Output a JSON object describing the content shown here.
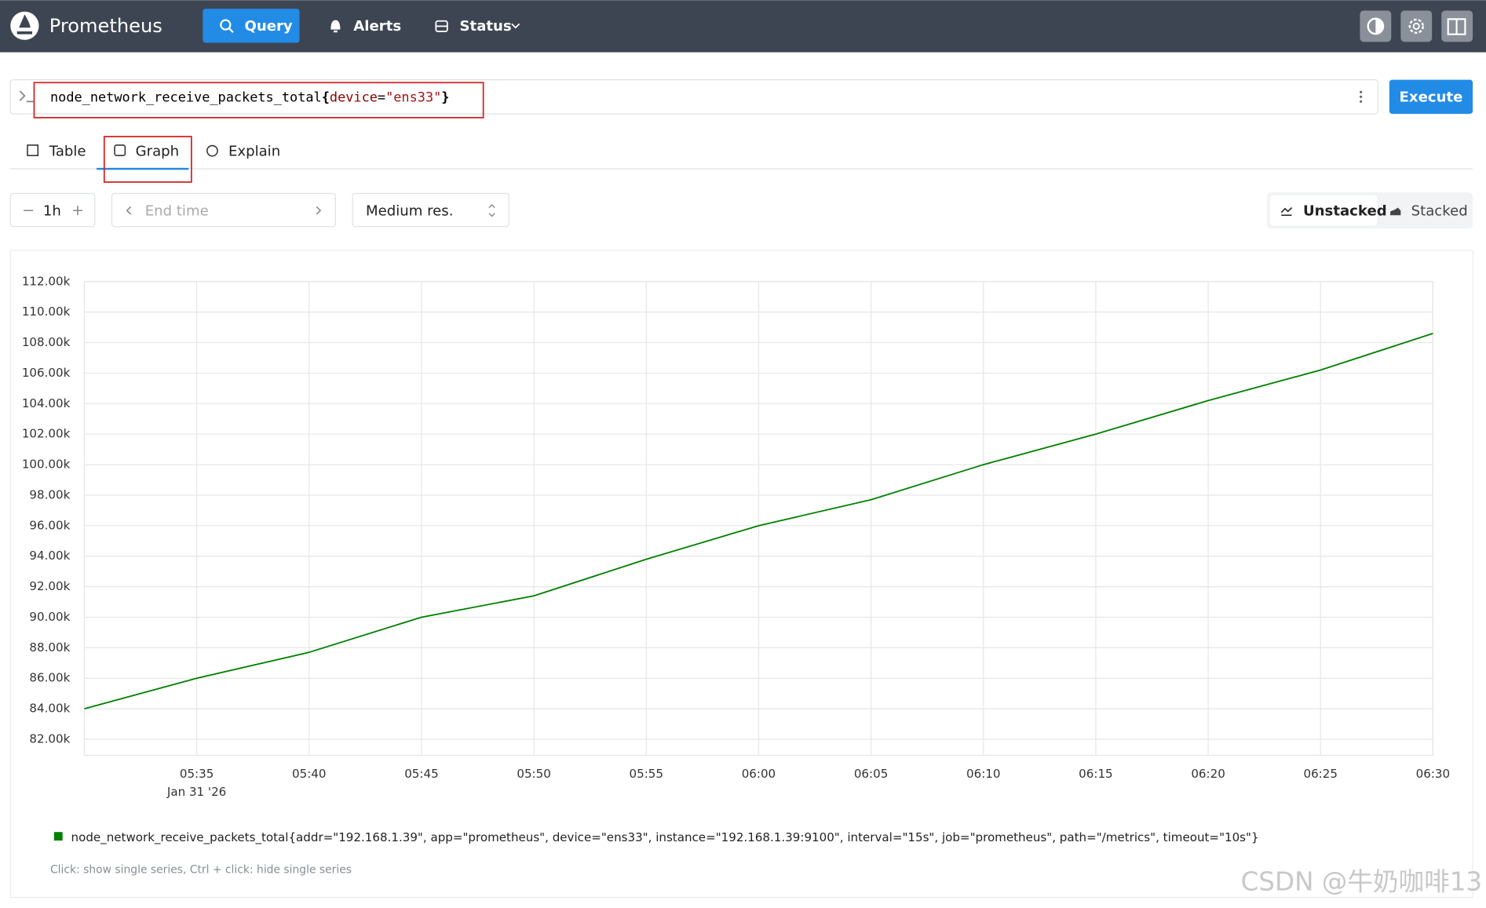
{
  "nav": {
    "brand": "Prometheus",
    "query": "Query",
    "alerts": "Alerts",
    "status": "Status"
  },
  "query": {
    "parts": [
      "node_network_receive_packets_total",
      "{",
      "device",
      "=",
      "\"ens33\"",
      "}"
    ],
    "execute": "Execute"
  },
  "tabs": [
    "Table",
    "Graph",
    "Explain"
  ],
  "controls": {
    "range": "1h",
    "end_time": "End time",
    "resolution": "Medium res.",
    "modes": [
      "Unstacked",
      "Stacked"
    ]
  },
  "chart_data": {
    "type": "line",
    "x": [
      "05:30",
      "05:35",
      "05:40",
      "05:45",
      "05:50",
      "05:55",
      "06:00",
      "06:05",
      "06:10",
      "06:15",
      "06:20",
      "06:25",
      "06:30"
    ],
    "series": [
      {
        "name": "node_network_receive_packets_total{addr=\"192.168.1.39\", app=\"prometheus\", device=\"ens33\", instance=\"192.168.1.39:9100\", interval=\"15s\", job=\"prometheus\", path=\"/metrics\", timeout=\"10s\"}",
        "color": "#008000",
        "values": [
          84000,
          86000,
          87700,
          90000,
          91400,
          93800,
          96000,
          97700,
          100000,
          102000,
          104200,
          106200,
          108600
        ]
      }
    ],
    "xlim": [
      "05:30",
      "06:30"
    ],
    "xticks": [
      "05:35",
      "05:40",
      "05:45",
      "05:50",
      "05:55",
      "06:00",
      "06:05",
      "06:10",
      "06:15",
      "06:20",
      "06:25",
      "06:30"
    ],
    "x_date_label": "Jan 31 '26",
    "ylim": [
      80950,
      112000
    ],
    "yticks": [
      {
        "value": 82000,
        "label": "82.00k"
      },
      {
        "value": 84000,
        "label": "84.00k"
      },
      {
        "value": 86000,
        "label": "86.00k"
      },
      {
        "value": 88000,
        "label": "88.00k"
      },
      {
        "value": 90000,
        "label": "90.00k"
      },
      {
        "value": 92000,
        "label": "92.00k"
      },
      {
        "value": 94000,
        "label": "94.00k"
      },
      {
        "value": 96000,
        "label": "96.00k"
      },
      {
        "value": 98000,
        "label": "98.00k"
      },
      {
        "value": 100000,
        "label": "100.00k"
      },
      {
        "value": 102000,
        "label": "102.00k"
      },
      {
        "value": 104000,
        "label": "104.00k"
      },
      {
        "value": 106000,
        "label": "106.00k"
      },
      {
        "value": 108000,
        "label": "108.00k"
      },
      {
        "value": 110000,
        "label": "110.00k"
      },
      {
        "value": 112000,
        "label": "112.00k"
      }
    ],
    "grid": true,
    "hint": "Click: show single series, Ctrl + click: hide single series"
  },
  "watermark": "CSDN @牛奶咖啡13"
}
